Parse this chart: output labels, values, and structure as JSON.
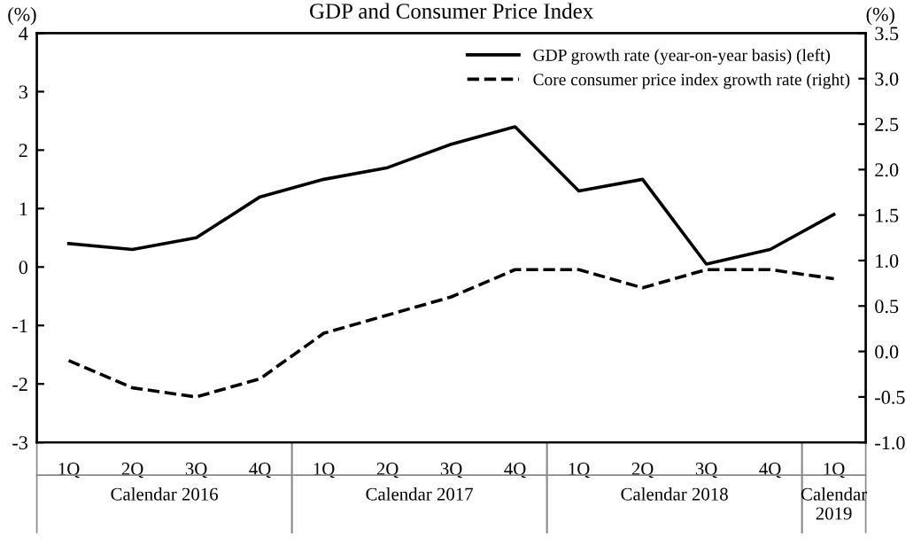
{
  "chart_data": {
    "type": "line",
    "title": "GDP and Consumer Price Index",
    "ylabel": "(%)",
    "y2label": "(%)",
    "categories": [
      "1Q",
      "2Q",
      "3Q",
      "4Q",
      "1Q",
      "2Q",
      "3Q",
      "4Q",
      "1Q",
      "2Q",
      "3Q",
      "4Q",
      "1Q"
    ],
    "annotations": [
      "Calendar 2016",
      "Calendar 2017",
      "Calendar 2018",
      "Calendar 2019"
    ],
    "series": [
      {
        "name": "GDP growth rate (year-on-year basis) (left)",
        "color": "#000000",
        "line_style": "solid",
        "values": [
          0.4,
          0.3,
          0.5,
          1.2,
          1.5,
          1.7,
          2.1,
          2.4,
          1.3,
          1.5,
          0.05,
          0.3,
          0.9
        ]
      },
      {
        "name": "Core consumer price index growth rate (right)",
        "color": "#000000",
        "line_style": "dashed",
        "axis": "y2",
        "values": [
          -0.1,
          -0.4,
          -0.5,
          -0.3,
          0.2,
          0.4,
          0.6,
          0.9,
          0.9,
          0.7,
          0.9,
          0.9,
          0.8
        ]
      }
    ],
    "ylim": [
      -3,
      4
    ],
    "yticks": [
      -3,
      -2,
      -1,
      0,
      1,
      2,
      3,
      4
    ],
    "y2lim": [
      -1.0,
      3.5
    ],
    "y2ticks": [
      {
        "value": -1,
        "label": "-1.0"
      },
      {
        "value": -0.5,
        "label": "-0.5"
      },
      {
        "value": 0,
        "label": "0.0"
      },
      {
        "value": 0.5,
        "label": "0.5"
      },
      {
        "value": 1,
        "label": "1.0"
      },
      {
        "value": 1.5,
        "label": "1.5"
      },
      {
        "value": 2,
        "label": "2.0"
      },
      {
        "value": 2.5,
        "label": "2.5"
      },
      {
        "value": 3,
        "label": "3.0"
      },
      {
        "value": 3.5,
        "label": "3.5"
      }
    ],
    "grid": false,
    "legend": "top right",
    "marker": "none"
  }
}
